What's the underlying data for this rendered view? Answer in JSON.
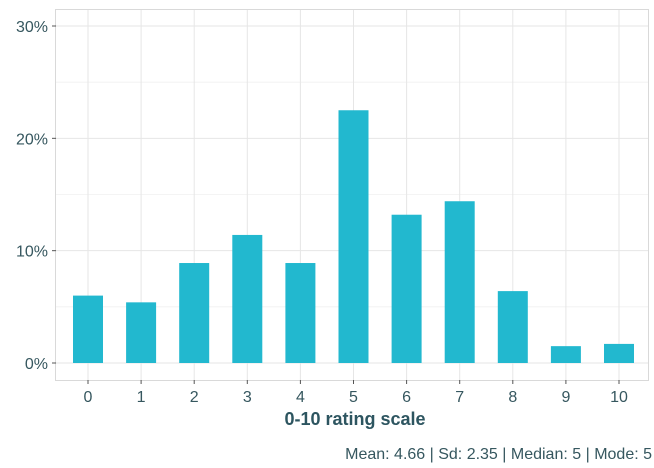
{
  "chart_data": {
    "type": "bar",
    "categories": [
      "0",
      "1",
      "2",
      "3",
      "4",
      "5",
      "6",
      "7",
      "8",
      "9",
      "10"
    ],
    "values": [
      6.0,
      5.4,
      8.9,
      11.4,
      8.9,
      22.5,
      13.2,
      14.4,
      6.4,
      1.5,
      1.7
    ],
    "value_unit": "%",
    "xlabel": "0-10 rating scale",
    "ylabel": "",
    "ylim": [
      0,
      30
    ],
    "y_ticks": [
      "0%",
      "10%",
      "20%",
      "30%"
    ],
    "y_tick_values": [
      0,
      10,
      20,
      30
    ],
    "grid": true,
    "legend": "none",
    "bar_color": "#22b8cf",
    "caption": "Mean: 4.66 | Sd: 2.35 | Median: 5 | Mode: 5"
  }
}
